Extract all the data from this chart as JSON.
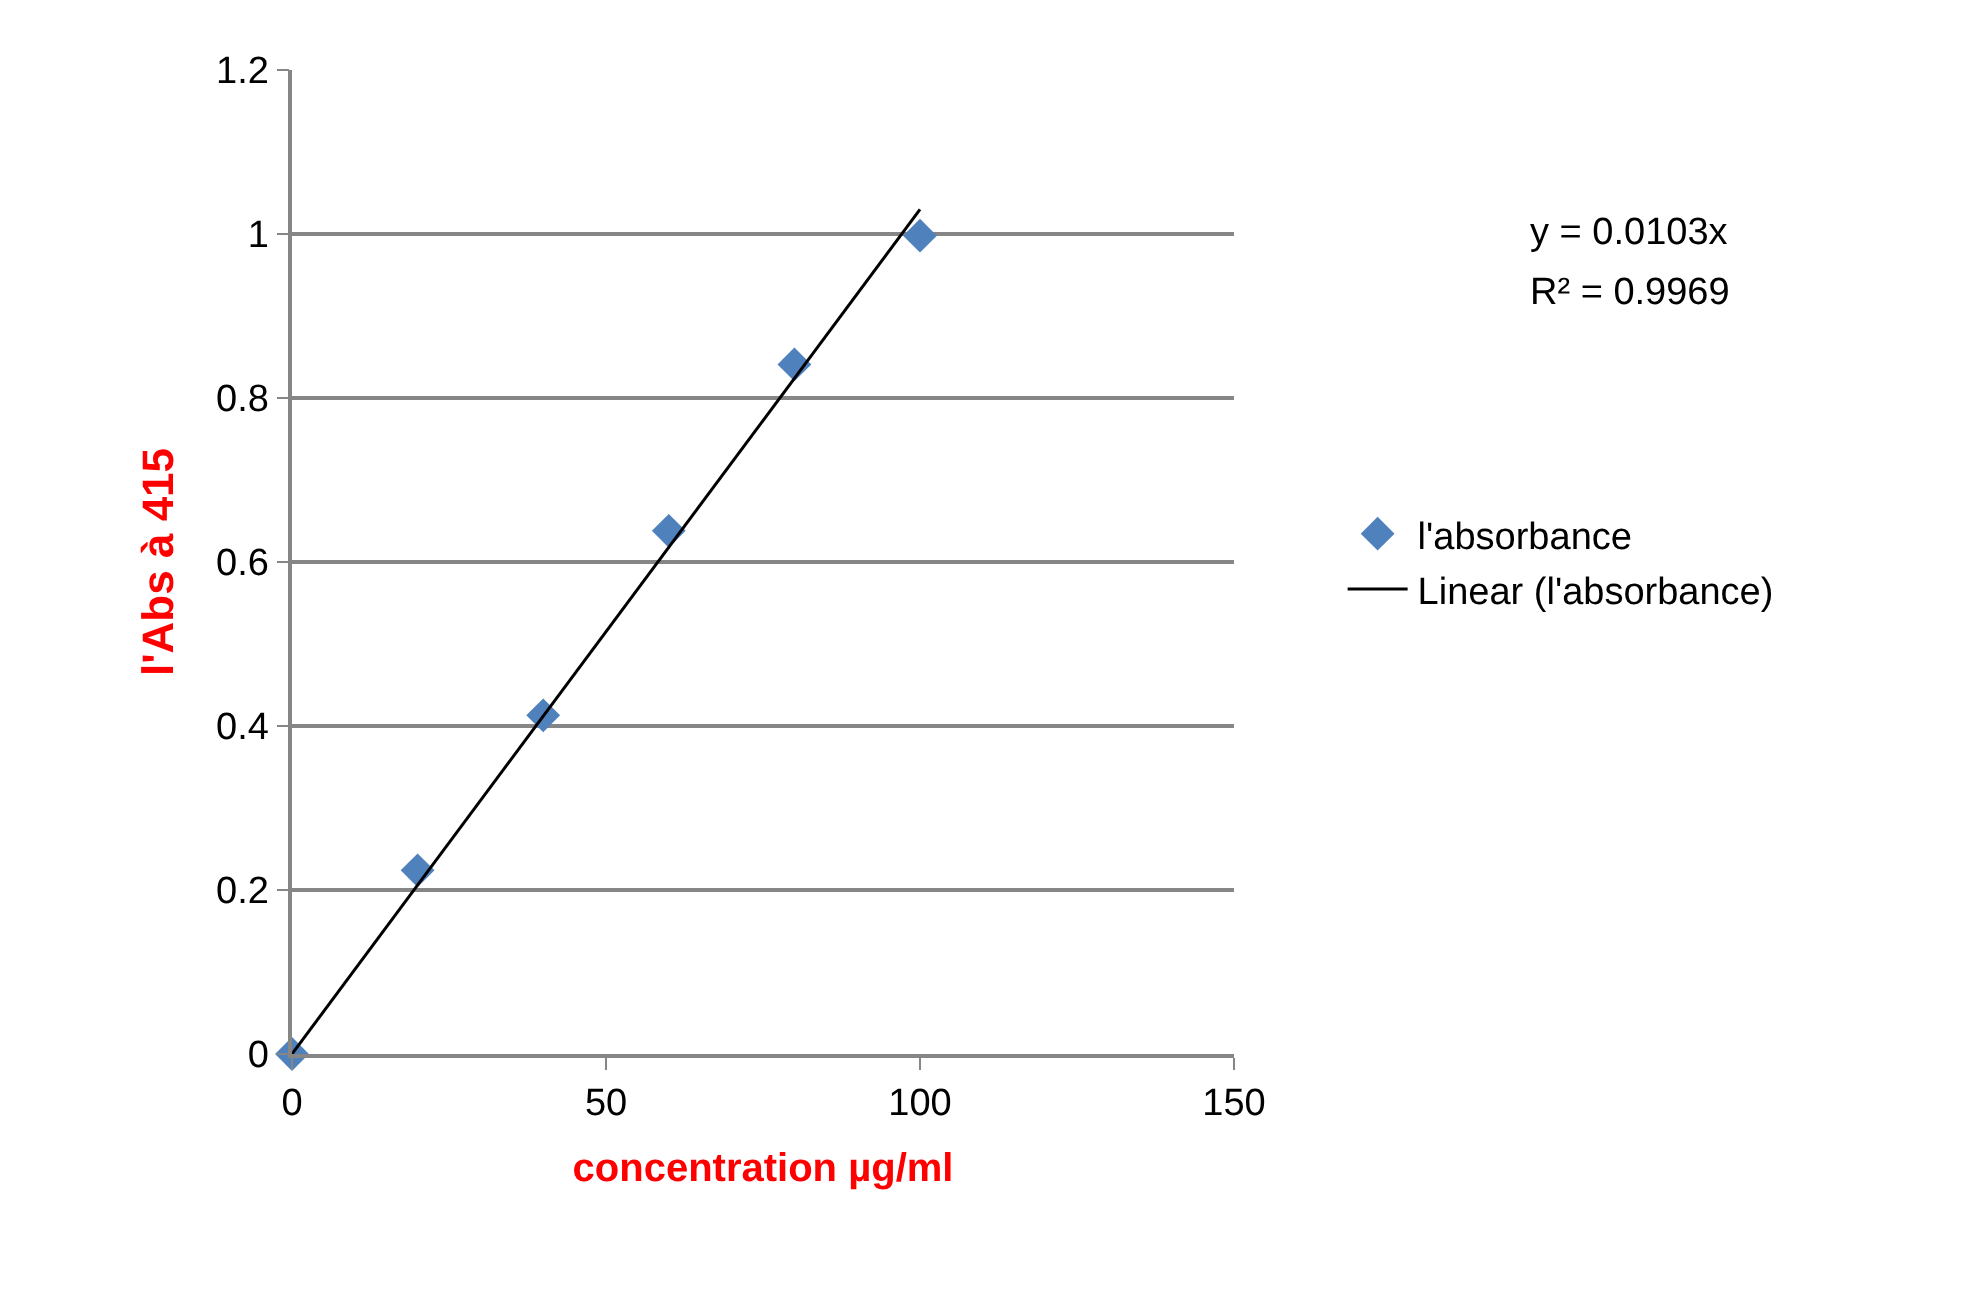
{
  "chart_data": {
    "type": "scatter",
    "xlabel": "concentration µg/ml",
    "ylabel": "l'Abs à 415",
    "xlim": [
      0,
      150
    ],
    "xticks": [
      0,
      50,
      100,
      150
    ],
    "ylim": [
      0,
      1.2
    ],
    "yticks": [
      0,
      0.2,
      0.4,
      0.6,
      0.8,
      1,
      1.2
    ],
    "grid": "y",
    "legend": "right",
    "annotations": [
      "y = 0.0103x",
      "R² = 0.9969"
    ],
    "series": [
      {
        "name": "l'absorbance",
        "marker": "diamond",
        "color": "#4f81bd",
        "x": [
          0,
          20,
          40,
          60,
          80,
          100
        ],
        "values": [
          0,
          0.224,
          0.413,
          0.638,
          0.841,
          0.998
        ]
      },
      {
        "name": "Linear (l'absorbance)",
        "type": "line",
        "color": "#000000",
        "x": [
          0,
          100
        ],
        "values": [
          0,
          1.03
        ]
      }
    ]
  }
}
